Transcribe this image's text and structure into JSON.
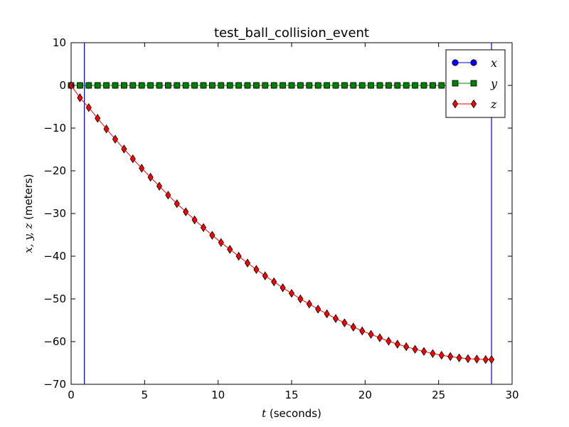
{
  "chart_data": {
    "type": "line",
    "title": "test_ball_collision_event",
    "xlabel": {
      "var": "t",
      "rest": " (seconds)"
    },
    "ylabel": {
      "var": "x, y, z",
      "rest": " (meters)"
    },
    "xlim": [
      0,
      30
    ],
    "ylim": [
      -70,
      10
    ],
    "xticks": [
      0,
      5,
      10,
      15,
      20,
      25,
      30
    ],
    "yticks": [
      10,
      0,
      -10,
      -20,
      -30,
      -40,
      -50,
      -60,
      -70
    ],
    "xtick_labels": [
      "0",
      "5",
      "10",
      "15",
      "20",
      "25",
      "30"
    ],
    "ytick_labels": [
      "10",
      "0",
      "−10",
      "−20",
      "−30",
      "−40",
      "−50",
      "−60",
      "−70"
    ],
    "grid": false,
    "legend_position": "top-right",
    "event_lines_x": [
      0.9,
      28.6
    ],
    "event_line_color": "#0000ff",
    "x": [
      0,
      0.6,
      1.2,
      1.8,
      2.4,
      3.0,
      3.6,
      4.2,
      4.8,
      5.4,
      6.0,
      6.6,
      7.2,
      7.8,
      8.4,
      9.0,
      9.6,
      10.2,
      10.8,
      11.4,
      12.0,
      12.6,
      13.2,
      13.8,
      14.4,
      15.0,
      15.6,
      16.2,
      16.8,
      17.4,
      18.0,
      18.6,
      19.2,
      19.8,
      20.4,
      21.0,
      21.6,
      22.2,
      22.8,
      23.4,
      24.0,
      24.6,
      25.2,
      25.8,
      26.4,
      27.0,
      27.6,
      28.2,
      28.6
    ],
    "series": [
      {
        "name": "x",
        "marker": "circle",
        "color": "#0000ff",
        "values": [
          0,
          0,
          0,
          0,
          0,
          0,
          0,
          0,
          0,
          0,
          0,
          0,
          0,
          0,
          0,
          0,
          0,
          0,
          0,
          0,
          0,
          0,
          0,
          0,
          0,
          0,
          0,
          0,
          0,
          0,
          0,
          0,
          0,
          0,
          0,
          0,
          0,
          0,
          0,
          0,
          0,
          0,
          0,
          0,
          0,
          0,
          0,
          0,
          0
        ]
      },
      {
        "name": "y",
        "marker": "square",
        "color": "#008000",
        "values": [
          0,
          0,
          0,
          0,
          0,
          0,
          0,
          0,
          0,
          0,
          0,
          0,
          0,
          0,
          0,
          0,
          0,
          0,
          0,
          0,
          0,
          0,
          0,
          0,
          0,
          0,
          0,
          0,
          0,
          0,
          0,
          0,
          0,
          0,
          0,
          0,
          0,
          0,
          0,
          0,
          0,
          0,
          0,
          0,
          0,
          0,
          0,
          0,
          0
        ]
      },
      {
        "name": "z",
        "marker": "diamond",
        "color": "#ff0000",
        "values": [
          0,
          -2.9,
          -5.2,
          -7.7,
          -10.2,
          -12.6,
          -14.9,
          -17.2,
          -19.4,
          -21.5,
          -23.6,
          -25.7,
          -27.7,
          -29.6,
          -31.5,
          -33.3,
          -35.1,
          -36.8,
          -38.4,
          -40.0,
          -41.6,
          -43.1,
          -44.6,
          -46.0,
          -47.4,
          -48.7,
          -50.0,
          -51.2,
          -52.4,
          -53.5,
          -54.6,
          -55.6,
          -56.6,
          -57.5,
          -58.3,
          -59.1,
          -59.9,
          -60.6,
          -61.2,
          -61.8,
          -62.3,
          -62.8,
          -63.2,
          -63.5,
          -63.8,
          -64.0,
          -64.1,
          -64.2,
          -64.2
        ]
      }
    ]
  }
}
